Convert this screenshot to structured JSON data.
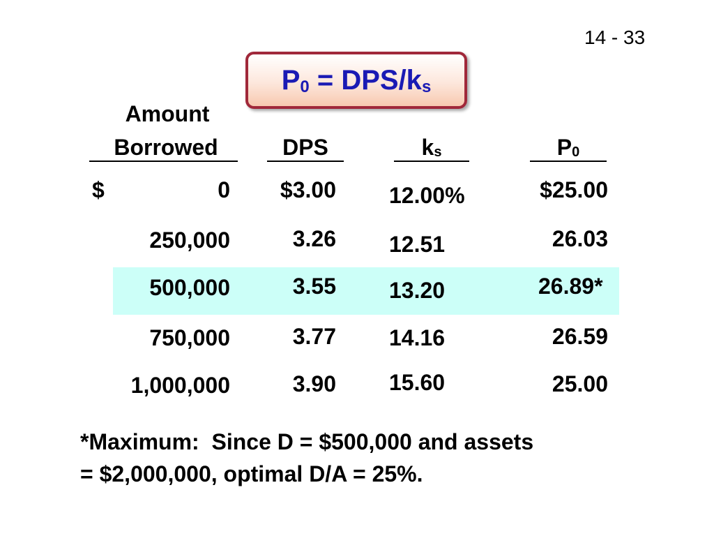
{
  "slide_number": "14 - 33",
  "title": {
    "main": "P",
    "sub1": "0",
    "mid": " = DPS/k",
    "sub2": "s"
  },
  "headers": {
    "amount_line1": "Amount",
    "amount_line2": "Borrowed",
    "dps": "DPS",
    "ks_main": "k",
    "ks_sub": "s",
    "p0_main": "P",
    "p0_sub": "0"
  },
  "rows": [
    {
      "amount_prefix": "$",
      "amount": "0",
      "dps": "$3.00",
      "ks": "12.00%",
      "p0": "$25.00"
    },
    {
      "amount_prefix": "",
      "amount": "250,000",
      "dps": "3.26",
      "ks": "12.51",
      "p0": "26.03"
    },
    {
      "amount_prefix": "",
      "amount": "500,000",
      "dps": "3.55",
      "ks": "13.20",
      "p0": "26.89*"
    },
    {
      "amount_prefix": "",
      "amount": "750,000",
      "dps": "3.77",
      "ks": "14.16",
      "p0": "26.59"
    },
    {
      "amount_prefix": "",
      "amount": "1,000,000",
      "dps": "3.90",
      "ks": "15.60",
      "p0": "25.00"
    }
  ],
  "highlight_color": "#ccfff8",
  "title_color": "#1a1ab4",
  "title_border_color": "#a0283a",
  "footnote": {
    "line1": "*Maximum:  Since D = $500,000 and assets",
    "line2": "= $2,000,000, optimal D/A = 25%."
  }
}
